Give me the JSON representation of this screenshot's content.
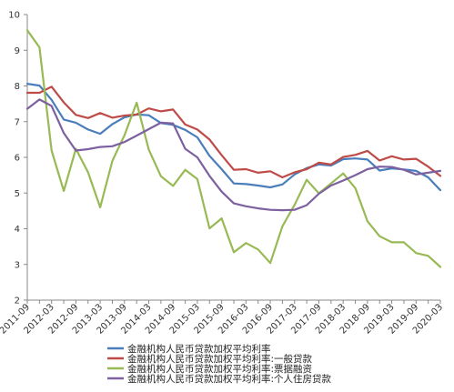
{
  "chart_data": {
    "type": "line",
    "categories": [
      "2011-09",
      "2011-12",
      "2012-03",
      "2012-06",
      "2012-09",
      "2012-12",
      "2013-03",
      "2013-06",
      "2013-09",
      "2013-12",
      "2014-03",
      "2014-06",
      "2014-09",
      "2014-12",
      "2015-03",
      "2015-06",
      "2015-09",
      "2015-12",
      "2016-03",
      "2016-06",
      "2016-09",
      "2016-12",
      "2017-03",
      "2017-06",
      "2017-09",
      "2017-12",
      "2018-03",
      "2018-06",
      "2018-09",
      "2018-12",
      "2019-03",
      "2019-06",
      "2019-09",
      "2019-12",
      "2020-03"
    ],
    "x_tick_labels": [
      "2011-09",
      "2012-03",
      "2012-09",
      "2013-03",
      "2013-09",
      "2014-03",
      "2014-09",
      "2015-03",
      "2015-09",
      "2016-03",
      "2016-09",
      "2017-03",
      "2017-09",
      "2018-03",
      "2018-09",
      "2019-03",
      "2019-09",
      "2020-03"
    ],
    "ylim": [
      2,
      10
    ],
    "y_ticks": [
      2,
      3,
      4,
      5,
      6,
      7,
      8,
      9,
      10
    ],
    "grid": false,
    "legend_position": "bottom",
    "title": "",
    "xlabel": "",
    "ylabel": "",
    "series": [
      {
        "name": "金融机构人民币贷款加权平均利率",
        "color": "#4a7ebb",
        "values": [
          8.06,
          8.01,
          7.61,
          7.06,
          6.97,
          6.78,
          6.66,
          6.93,
          7.12,
          7.2,
          7.18,
          6.96,
          6.91,
          6.77,
          6.56,
          6.04,
          5.67,
          5.27,
          5.25,
          5.21,
          5.16,
          5.24,
          5.52,
          5.7,
          5.8,
          5.77,
          5.95,
          5.97,
          5.94,
          5.63,
          5.69,
          5.66,
          5.62,
          5.44,
          5.08
        ]
      },
      {
        "name": "金融机构人民币贷款加权平均利率:一般贷款",
        "color": "#be4b48",
        "values": [
          7.81,
          7.81,
          7.98,
          7.54,
          7.19,
          7.1,
          7.24,
          7.11,
          7.17,
          7.2,
          7.37,
          7.29,
          7.34,
          6.92,
          6.78,
          6.5,
          6.06,
          5.65,
          5.67,
          5.57,
          5.61,
          5.44,
          5.58,
          5.67,
          5.85,
          5.8,
          6.01,
          6.07,
          6.18,
          5.91,
          6.03,
          5.94,
          5.96,
          5.74,
          5.48
        ]
      },
      {
        "name": "金融机构人民币贷款加权平均利率:票据融资",
        "color": "#98b954",
        "values": [
          9.56,
          9.08,
          6.19,
          5.06,
          6.24,
          5.58,
          4.6,
          5.9,
          6.62,
          7.53,
          6.22,
          5.47,
          5.2,
          5.65,
          5.39,
          4.01,
          4.29,
          3.34,
          3.6,
          3.42,
          3.04,
          4.07,
          4.67,
          5.37,
          4.99,
          5.27,
          5.55,
          5.14,
          4.21,
          3.79,
          3.62,
          3.62,
          3.32,
          3.24,
          2.93
        ]
      },
      {
        "name": "金融机构人民币贷款加权平均利率:个人住房贷款",
        "color": "#7d60a0",
        "values": [
          7.36,
          7.62,
          7.44,
          6.68,
          6.19,
          6.23,
          6.29,
          6.31,
          6.43,
          6.61,
          6.79,
          6.97,
          6.95,
          6.24,
          6.0,
          5.48,
          5.04,
          4.71,
          4.63,
          4.57,
          4.53,
          4.52,
          4.53,
          4.66,
          4.98,
          5.21,
          5.35,
          5.5,
          5.67,
          5.74,
          5.73,
          5.65,
          5.52,
          5.57,
          5.62
        ]
      }
    ]
  }
}
